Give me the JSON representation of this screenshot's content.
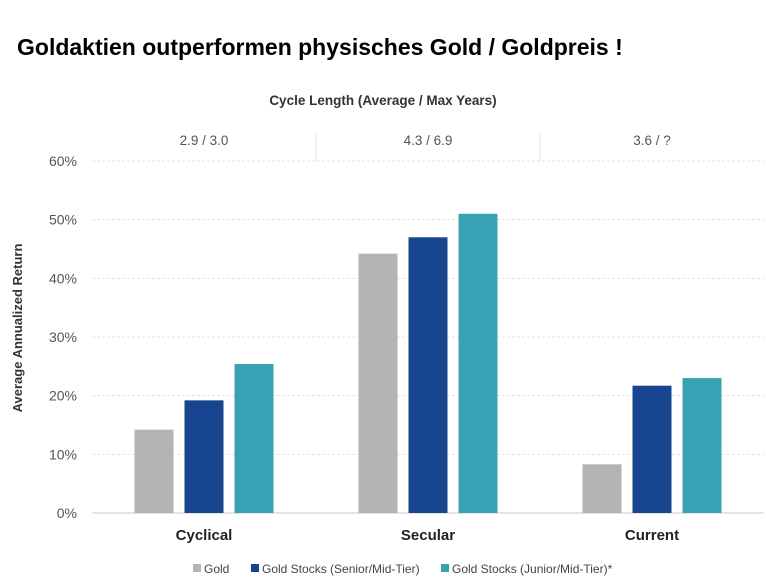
{
  "header": {
    "title": "Goldaktien outperformen physisches Gold / Goldpreis !"
  },
  "chart_data": {
    "type": "bar",
    "title": "Cycle Length (Average / Max Years)",
    "ylabel": "Average Annualized Return",
    "xlabel": "",
    "categories": [
      "Cyclical",
      "Secular",
      "Current"
    ],
    "cycle_lengths": [
      "2.9 / 3.0",
      "4.3 / 6.9",
      "3.6 / ?"
    ],
    "yticks": [
      "0%",
      "10%",
      "20%",
      "30%",
      "40%",
      "50%",
      "60%"
    ],
    "ylim": [
      0,
      60
    ],
    "grid": true,
    "legend_position": "bottom",
    "series": [
      {
        "name": "Gold",
        "color": "#b3b3b3",
        "values": [
          14.2,
          44.2,
          8.3
        ]
      },
      {
        "name": "Gold Stocks (Senior/Mid-Tier)",
        "color": "#17448e",
        "values": [
          19.2,
          47.0,
          21.7
        ]
      },
      {
        "name": "Gold Stocks (Junior/Mid-Tier)*",
        "color": "#38a1b4",
        "values": [
          25.4,
          51.0,
          23.0
        ]
      }
    ]
  }
}
